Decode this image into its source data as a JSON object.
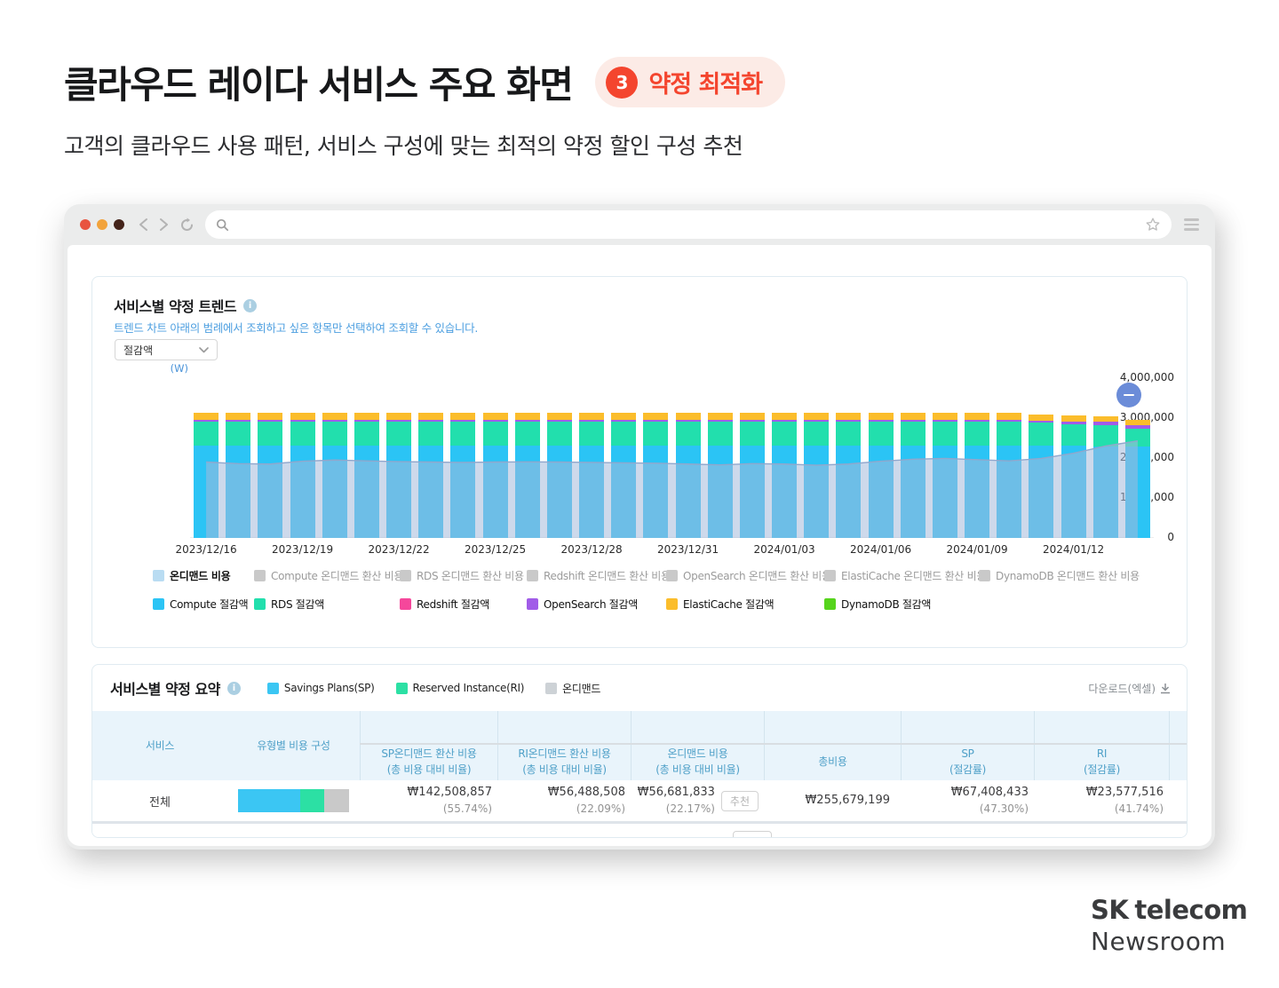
{
  "page": {
    "title": "클라우드 레이다 서비스 주요 화면",
    "badge": {
      "number": "3",
      "label": "약정 최적화"
    },
    "subtitle": "고객의 클라우드 사용 패턴, 서비스 구성에 맞는 최적의 약정 할인 구성 추천"
  },
  "colors": {
    "accent_red": "#f4452e",
    "badge_bg": "#fcebe6",
    "table_header_text": "#4fa0c8",
    "table_header_bg": "#e9f4fb",
    "minus_button": "#6b8cd8"
  },
  "trend_section": {
    "title": "서비스별 약정 트렌드",
    "info_icon": "i",
    "description": "트렌드 차트 아래의 범례에서 조회하고 싶은 항목만 선택하여 조회할 수 있습니다.",
    "metric_select_value": "절감액",
    "unit_label": "(W)",
    "legend_row1": [
      {
        "label": "온디맨드 비용",
        "swatch": "#b9dcf2",
        "active": true
      },
      {
        "label": "Compute 온디맨드 환산 비용",
        "swatch": "#c9c9c9",
        "active": false
      },
      {
        "label": "RDS 온디맨드 환산 비용",
        "swatch": "#c9c9c9",
        "active": false
      },
      {
        "label": "Redshift 온디맨드 환산 비용",
        "swatch": "#c9c9c9",
        "active": false
      },
      {
        "label": "OpenSearch 온디맨드 환산 비용",
        "swatch": "#c9c9c9",
        "active": false
      },
      {
        "label": "ElastiCache 온디맨드 환산 비용",
        "swatch": "#c9c9c9",
        "active": false
      },
      {
        "label": "DynamoDB 온디맨드 환산 비용",
        "swatch": "#c9c9c9",
        "active": false
      }
    ],
    "legend_row2": [
      {
        "label": "Compute 절감액",
        "swatch": "#2bc4f5"
      },
      {
        "label": "RDS 절감액",
        "swatch": "#22dfad"
      },
      {
        "label": "Redshift 절감액",
        "swatch": "#f5479b"
      },
      {
        "label": "OpenSearch 절감액",
        "swatch": "#a15ce8"
      },
      {
        "label": "ElastiCache 절감액",
        "swatch": "#fbbd2b"
      },
      {
        "label": "DynamoDB 절감액",
        "swatch": "#56d41c"
      }
    ]
  },
  "chart_data": {
    "type": "bar",
    "stacked": true,
    "ylabel": "(W)",
    "ylim": [
      0,
      4000000
    ],
    "yticks": [
      "0",
      "1,000,000",
      "2,000,000",
      "3,000,000",
      "4,000,000"
    ],
    "x": [
      "2023/12/16",
      "2023/12/17",
      "2023/12/18",
      "2023/12/19",
      "2023/12/20",
      "2023/12/21",
      "2023/12/22",
      "2023/12/23",
      "2023/12/24",
      "2023/12/25",
      "2023/12/26",
      "2023/12/27",
      "2023/12/28",
      "2023/12/29",
      "2023/12/30",
      "2023/12/31",
      "2024/01/01",
      "2024/01/02",
      "2024/01/03",
      "2024/01/04",
      "2024/01/05",
      "2024/01/06",
      "2024/01/07",
      "2024/01/08",
      "2024/01/09",
      "2024/01/10",
      "2024/01/11",
      "2024/01/12",
      "2024/01/13",
      "2024/01/14"
    ],
    "x_tick_labels": [
      "2023/12/16",
      "2023/12/19",
      "2023/12/22",
      "2023/12/25",
      "2023/12/28",
      "2023/12/31",
      "2024/01/03",
      "2024/01/06",
      "2024/01/09",
      "2024/01/12"
    ],
    "x_tick_every": 3,
    "series": [
      {
        "name": "Compute 절감액",
        "color": "#2bc4f5",
        "values": [
          2320000,
          2320000,
          2315000,
          2320000,
          2320000,
          2320000,
          2318000,
          2320000,
          2320000,
          2320000,
          2320000,
          2318000,
          2320000,
          2320000,
          2320000,
          2320000,
          2318000,
          2320000,
          2320000,
          2320000,
          2320000,
          2320000,
          2320000,
          2320000,
          2318000,
          2320000,
          2320000,
          2310000,
          2280000,
          2300000
        ]
      },
      {
        "name": "RDS 절감액",
        "color": "#22dfad",
        "values": [
          590000,
          585000,
          590000,
          588000,
          590000,
          590000,
          585000,
          590000,
          590000,
          588000,
          590000,
          590000,
          585000,
          590000,
          590000,
          588000,
          590000,
          590000,
          585000,
          590000,
          590000,
          588000,
          590000,
          590000,
          585000,
          590000,
          560000,
          545000,
          540000,
          430000
        ]
      },
      {
        "name": "OpenSearch 절감액",
        "color": "#a15ce8",
        "values": [
          55000,
          55000,
          55000,
          55000,
          55000,
          55000,
          55000,
          55000,
          55000,
          55000,
          55000,
          55000,
          55000,
          55000,
          55000,
          55000,
          55000,
          55000,
          55000,
          55000,
          55000,
          55000,
          55000,
          55000,
          55000,
          55000,
          58000,
          60000,
          85000,
          95000
        ]
      },
      {
        "name": "ElastiCache 절감액",
        "color": "#fbbd2b",
        "values": [
          165000,
          165000,
          163000,
          165000,
          165000,
          163000,
          165000,
          165000,
          163000,
          165000,
          165000,
          163000,
          165000,
          165000,
          163000,
          165000,
          165000,
          163000,
          165000,
          165000,
          163000,
          165000,
          165000,
          163000,
          165000,
          160000,
          150000,
          145000,
          130000,
          140000
        ]
      }
    ],
    "area_series": {
      "name": "온디맨드 비용",
      "fill": "rgba(164,186,219,0.55)",
      "stroke": "#90a7cd",
      "values": [
        1900000,
        1860000,
        1850000,
        1920000,
        1950000,
        1930000,
        1910000,
        1900000,
        1890000,
        1900000,
        1905000,
        1900000,
        1890000,
        1880000,
        1870000,
        1850000,
        1830000,
        1860000,
        1850000,
        1820000,
        1850000,
        1920000,
        1970000,
        1990000,
        1960000,
        1930000,
        1990000,
        2120000,
        2300000,
        2430000
      ]
    }
  },
  "summary_section": {
    "title": "서비스별 약정 요약",
    "info_icon": "i",
    "legend": [
      {
        "label": "Savings Plans(SP)",
        "swatch": "#3bc6f3"
      },
      {
        "label": "Reserved Instance(RI)",
        "swatch": "#2ce0a4"
      },
      {
        "label": "온디맨드",
        "swatch": "#cdd2d6"
      }
    ],
    "download_label": "다운로드(엑셀)",
    "table": {
      "col_service": "서비스",
      "col_composition": "유형별 비용 구성",
      "group_cost": "유형별 비용",
      "group_savings": "유형별 절감액",
      "sub_columns": [
        {
          "line1": "SP온디맨드 환산 비용",
          "line2": "(총 비용 대비 비율)"
        },
        {
          "line1": "RI온디맨드 환산 비용",
          "line2": "(총 비용 대비 비율)"
        },
        {
          "line1": "온디맨드 비용",
          "line2": "(총 비용 대비 비율)"
        },
        {
          "line1": "총비용",
          "line2": ""
        },
        {
          "line1": "SP",
          "line2": "(절감률)"
        },
        {
          "line1": "RI",
          "line2": "(절감률)"
        }
      ],
      "row": {
        "service": "전체",
        "composition": [
          {
            "color": "#3bc6f3",
            "pct": 55.74
          },
          {
            "color": "#2ce0a4",
            "pct": 22.09
          },
          {
            "color": "#c9c9c9",
            "pct": 22.17
          }
        ],
        "cells": [
          {
            "amount": "₩142,508,857",
            "pct": "(55.74%)"
          },
          {
            "amount": "₩56,488,508",
            "pct": "(22.09%)"
          },
          {
            "amount": "₩56,681,833",
            "pct": "(22.17%)",
            "badge": "추천"
          },
          {
            "amount": "₩255,679,199",
            "pct": ""
          },
          {
            "amount": "₩67,408,433",
            "pct": "(47.30%)"
          },
          {
            "amount": "₩23,577,516",
            "pct": "(41.74%)"
          }
        ]
      }
    }
  },
  "footer": {
    "brand_bold": "SK",
    "brand_rest": "telecom",
    "line2": "Newsroom"
  }
}
